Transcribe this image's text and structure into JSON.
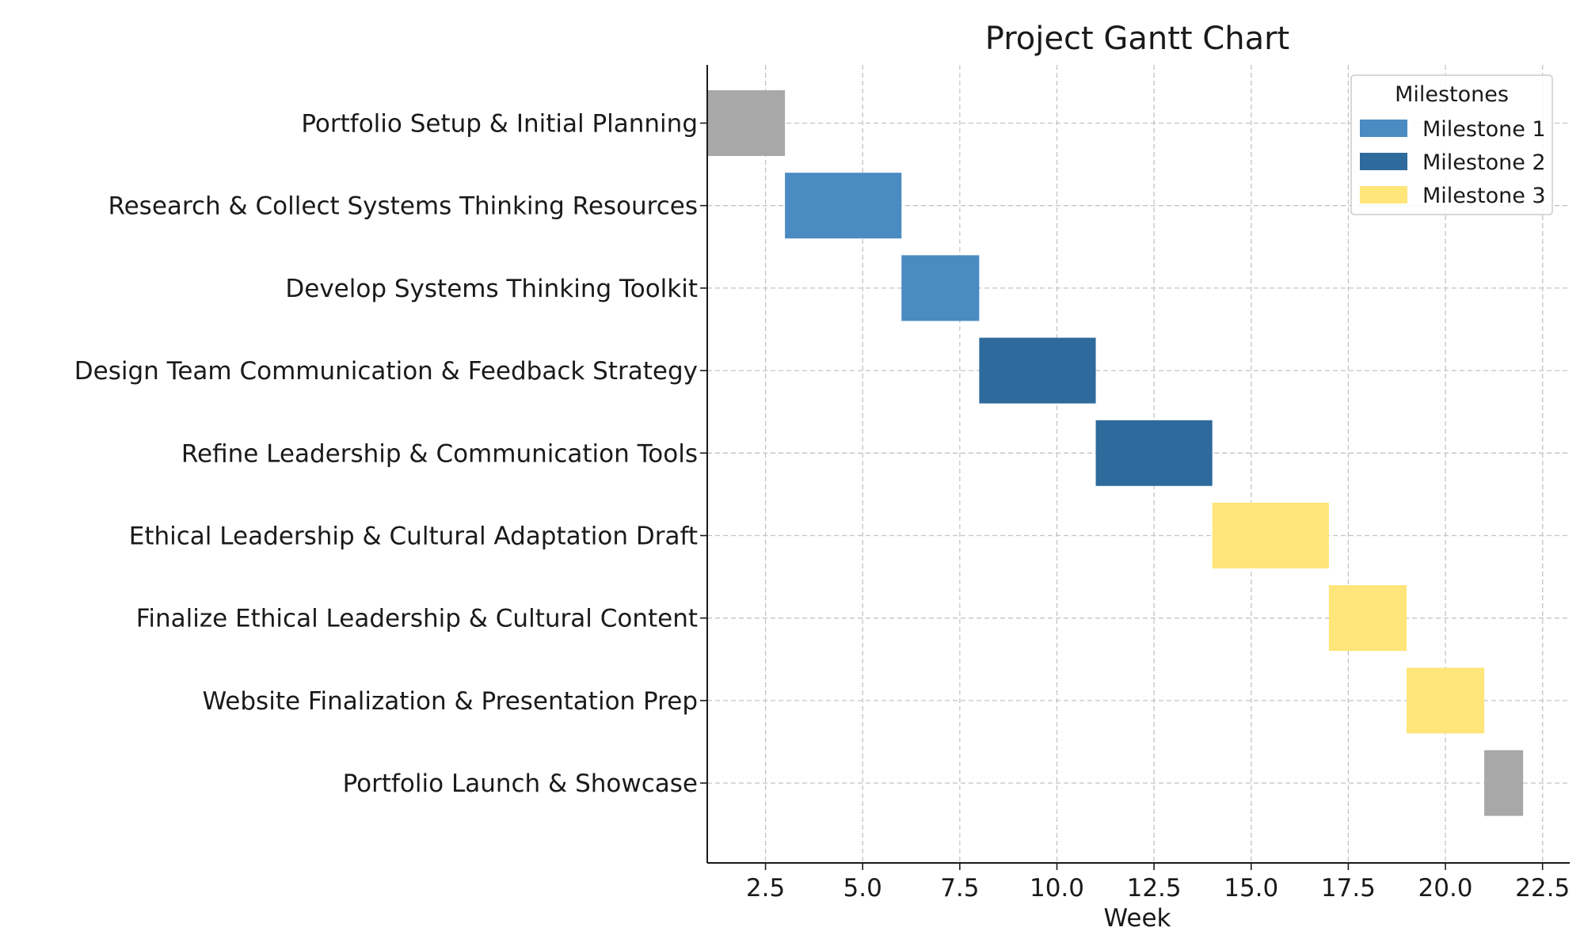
{
  "chart_data": {
    "type": "gantt",
    "title": "Project Gantt Chart",
    "xlabel": "Week",
    "ylabel": "",
    "xlim": [
      1,
      23.2
    ],
    "xticks": [
      2.5,
      5.0,
      7.5,
      10.0,
      12.5,
      15.0,
      17.5,
      20.0,
      22.5
    ],
    "xtick_labels": [
      "2.5",
      "5.0",
      "7.5",
      "10.0",
      "12.5",
      "15.0",
      "17.5",
      "20.0",
      "22.5"
    ],
    "grid": true,
    "legend": {
      "title": "Milestones",
      "placement": "top-right",
      "entries": [
        {
          "label": "Milestone 1",
          "color": "#4A8BC2"
        },
        {
          "label": "Milestone 2",
          "color": "#2E6A9C"
        },
        {
          "label": "Milestone 3",
          "color": "#FFE57A"
        }
      ]
    },
    "tasks": [
      {
        "name": "Portfolio Setup & Initial Planning",
        "start": 1,
        "end": 3,
        "color": "#A8A8A8"
      },
      {
        "name": "Research & Collect Systems Thinking Resources",
        "start": 3,
        "end": 6,
        "color": "#4A8BC2"
      },
      {
        "name": "Develop Systems Thinking Toolkit",
        "start": 6,
        "end": 8,
        "color": "#4A8BC2"
      },
      {
        "name": "Design Team Communication & Feedback Strategy",
        "start": 8,
        "end": 11,
        "color": "#2E6A9C"
      },
      {
        "name": "Refine Leadership & Communication Tools",
        "start": 11,
        "end": 14,
        "color": "#2E6A9C"
      },
      {
        "name": "Ethical Leadership & Cultural Adaptation Draft",
        "start": 14,
        "end": 17,
        "color": "#FFE57A"
      },
      {
        "name": "Finalize Ethical Leadership & Cultural Content",
        "start": 17,
        "end": 19,
        "color": "#FFE57A"
      },
      {
        "name": "Website Finalization & Presentation Prep",
        "start": 19,
        "end": 21,
        "color": "#FFE57A"
      },
      {
        "name": "Portfolio Launch & Showcase",
        "start": 21,
        "end": 22,
        "color": "#A8A8A8"
      }
    ]
  }
}
